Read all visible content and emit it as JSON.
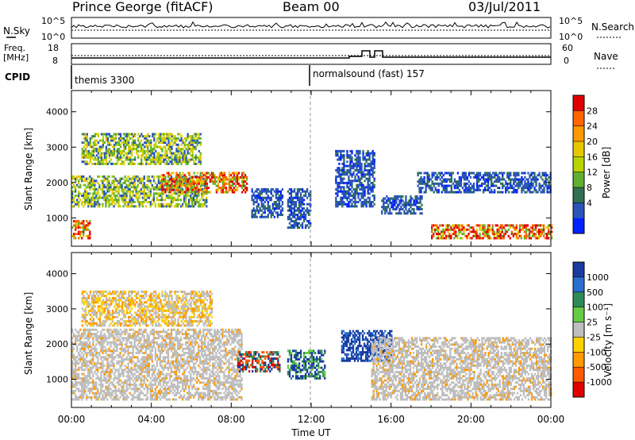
{
  "header": {
    "station": "Prince George (fitACF)",
    "beam": "Beam 00",
    "date": "03/Jul/2011"
  },
  "nsky_panel": {
    "left_label": "N.Sky",
    "left_ticks": [
      "10^5",
      "10^0"
    ],
    "right_ticks": [
      "10^5",
      "10^0"
    ],
    "right_label": "N.Search"
  },
  "freq_panel": {
    "left_label_1": "Freq.",
    "left_label_2": "[MHz]",
    "left_ticks": [
      "18",
      "8"
    ],
    "right_ticks": [
      "60",
      "0"
    ],
    "right_label": "Nave"
  },
  "cpid": {
    "label": "CPID",
    "program_1": "themis 3300",
    "program_2": "normalsound (fast) 157"
  },
  "chart_data": [
    {
      "type": "heatmap",
      "panel": "power",
      "ylabel": "Slant Range [km]",
      "y_ticks": [
        "4000",
        "3000",
        "2000",
        "1000"
      ],
      "ylim": [
        200,
        4600
      ],
      "xlim": [
        0,
        24
      ],
      "colorbar": {
        "label": "Power [dB]",
        "ticks": [
          "28",
          "24",
          "20",
          "16",
          "12",
          "8",
          "4"
        ],
        "colors": [
          "#e00000",
          "#ff6600",
          "#ff9900",
          "#e6c800",
          "#b8d400",
          "#60b030",
          "#2f7050",
          "#2a55b8",
          "#0022ff"
        ]
      },
      "echo_regions": [
        {
          "t0": 0.0,
          "t1": 0.9,
          "r0": 400,
          "r1": 900,
          "level": "high"
        },
        {
          "t0": 0.0,
          "t1": 6.8,
          "r0": 1300,
          "r1": 2200,
          "level": "medium"
        },
        {
          "t0": 4.5,
          "t1": 8.8,
          "r0": 1700,
          "r1": 2300,
          "level": "high"
        },
        {
          "t0": 0.5,
          "t1": 6.5,
          "r0": 2500,
          "r1": 3400,
          "level": "medium"
        },
        {
          "t0": 9.0,
          "t1": 10.6,
          "r0": 1000,
          "r1": 1800,
          "level": "low"
        },
        {
          "t0": 10.8,
          "t1": 12.0,
          "r0": 700,
          "r1": 1800,
          "level": "low"
        },
        {
          "t0": 13.2,
          "t1": 15.2,
          "r0": 1300,
          "r1": 2900,
          "level": "low"
        },
        {
          "t0": 15.5,
          "t1": 17.5,
          "r0": 1100,
          "r1": 1600,
          "level": "low"
        },
        {
          "t0": 17.3,
          "t1": 24.0,
          "r0": 1700,
          "r1": 2300,
          "level": "low"
        },
        {
          "t0": 18.0,
          "t1": 24.0,
          "r0": 400,
          "r1": 800,
          "level": "high"
        }
      ]
    },
    {
      "type": "heatmap",
      "panel": "velocity",
      "ylabel": "Slant Range [km]",
      "y_ticks": [
        "4000",
        "3000",
        "2000",
        "1000"
      ],
      "ylim": [
        200,
        4600
      ],
      "xlim": [
        0,
        24
      ],
      "x_ticks": [
        "00:00",
        "04:00",
        "08:00",
        "12:00",
        "16:00",
        "20:00",
        "00:00"
      ],
      "xlabel": "Time UT",
      "colorbar": {
        "label": "Velocity [m s⁻¹]",
        "ticks": [
          "1000",
          "500",
          "100",
          "25",
          "-25",
          "-100",
          "-500",
          "-1000"
        ],
        "colors": [
          "#1a3ca0",
          "#2a6fd0",
          "#2e8b57",
          "#66cc44",
          "#bebebe",
          "#ffd000",
          "#ff9a00",
          "#ff5a00",
          "#e00000"
        ]
      },
      "echo_regions": [
        {
          "t0": 0.0,
          "t1": 8.5,
          "r0": 400,
          "r1": 2400,
          "class": "ground_scatter"
        },
        {
          "t0": 0.5,
          "t1": 7.0,
          "r0": 2500,
          "r1": 3500,
          "class": "mixed_orange"
        },
        {
          "t0": 8.3,
          "t1": 10.4,
          "r0": 1200,
          "r1": 1800,
          "class": "mixed_strong"
        },
        {
          "t0": 10.8,
          "t1": 12.7,
          "r0": 1000,
          "r1": 1800,
          "class": "blue_green"
        },
        {
          "t0": 13.5,
          "t1": 16.0,
          "r0": 1500,
          "r1": 2400,
          "class": "blue"
        },
        {
          "t0": 15.0,
          "t1": 24.0,
          "r0": 400,
          "r1": 2200,
          "class": "ground_scatter"
        }
      ]
    }
  ]
}
